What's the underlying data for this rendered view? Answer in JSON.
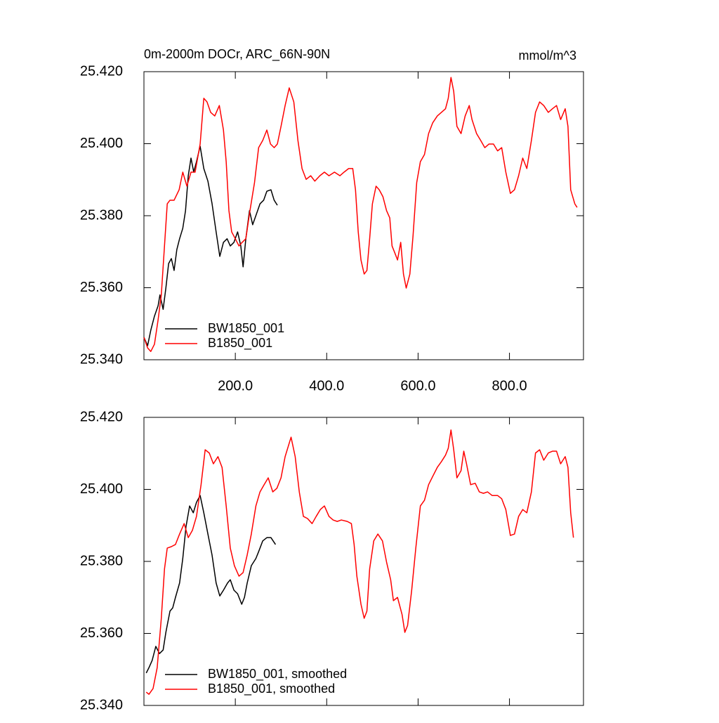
{
  "chart_data": [
    {
      "type": "line",
      "title": "0m-2000m DOCr, ARC_66N-90N",
      "y_units": "mmol/m^3",
      "xlim": [
        0,
        962
      ],
      "ylim": [
        25.34,
        25.42
      ],
      "xticks": [
        {
          "value": 200,
          "label": "200.0"
        },
        {
          "value": 400,
          "label": "400.0"
        },
        {
          "value": 600,
          "label": "600.0"
        },
        {
          "value": 800,
          "label": "800.0"
        }
      ],
      "xtick_labels": true,
      "yticks": [
        {
          "value": 25.34,
          "label": "25.340"
        },
        {
          "value": 25.36,
          "label": "25.360"
        },
        {
          "value": 25.38,
          "label": "25.380"
        },
        {
          "value": 25.4,
          "label": "25.400"
        },
        {
          "value": 25.42,
          "label": "25.420"
        }
      ],
      "legend": "lower-left",
      "series": [
        {
          "name": "BW1850_001",
          "color": "#000000",
          "x": [
            0,
            8,
            15,
            23,
            31,
            35,
            42,
            48,
            54,
            60,
            66,
            72,
            78,
            85,
            91,
            97,
            103,
            109,
            115,
            123,
            131,
            140,
            149,
            158,
            166,
            174,
            182,
            189,
            197,
            205,
            212,
            217,
            223,
            231,
            238,
            246,
            254,
            262,
            269,
            278,
            285,
            292
          ],
          "values": [
            25.3462,
            25.3439,
            25.3482,
            25.3521,
            25.355,
            25.358,
            25.354,
            25.3599,
            25.3667,
            25.3681,
            25.3648,
            25.3706,
            25.3736,
            25.3765,
            25.3814,
            25.3911,
            25.396,
            25.3921,
            25.395,
            25.3993,
            25.3931,
            25.3896,
            25.3834,
            25.3755,
            25.3687,
            25.3726,
            25.3736,
            25.3716,
            25.3726,
            25.3755,
            25.3716,
            25.3658,
            25.3736,
            25.3814,
            25.3775,
            25.3804,
            25.3833,
            25.3843,
            25.3868,
            25.3872,
            25.3843,
            25.3829
          ]
        },
        {
          "name": "B1850_001",
          "color": "#ff0000",
          "x": [
            0,
            8,
            15,
            23,
            31,
            38,
            46,
            51,
            57,
            66,
            77,
            85,
            94,
            103,
            112,
            123,
            131,
            138,
            146,
            155,
            165,
            174,
            180,
            186,
            192,
            200,
            208,
            215,
            223,
            232,
            242,
            251,
            260,
            269,
            277,
            285,
            292,
            300,
            309,
            318,
            328,
            337,
            346,
            355,
            365,
            374,
            385,
            395,
            405,
            417,
            429,
            438,
            448,
            457,
            463,
            469,
            475,
            482,
            488,
            494,
            500,
            508,
            515,
            523,
            531,
            538,
            543,
            549,
            555,
            562,
            568,
            574,
            582,
            589,
            597,
            605,
            614,
            623,
            632,
            642,
            651,
            660,
            666,
            672,
            678,
            685,
            694,
            703,
            712,
            718,
            728,
            737,
            746,
            755,
            765,
            774,
            783,
            792,
            802,
            811,
            820,
            829,
            838,
            848,
            857,
            866,
            875,
            885,
            894,
            903,
            912,
            922,
            928,
            934,
            943,
            948
          ],
          "values": [
            25.3462,
            25.3433,
            25.3423,
            25.3443,
            25.3511,
            25.358,
            25.3736,
            25.3833,
            25.3843,
            25.3843,
            25.3872,
            25.3921,
            25.3882,
            25.3921,
            25.3921,
            25.3999,
            25.4126,
            25.4116,
            25.4087,
            25.4077,
            25.4106,
            25.4038,
            25.395,
            25.3814,
            25.3755,
            25.3736,
            25.3716,
            25.3726,
            25.3736,
            25.3814,
            25.3892,
            25.3989,
            25.4009,
            25.4038,
            25.3999,
            25.3989,
            25.3999,
            25.4048,
            25.4106,
            25.4155,
            25.4116,
            25.4009,
            25.3931,
            25.3901,
            25.3911,
            25.3896,
            25.3911,
            25.3921,
            25.3911,
            25.3921,
            25.3911,
            25.3921,
            25.3931,
            25.3931,
            25.3872,
            25.3755,
            25.3677,
            25.3638,
            25.3648,
            25.3736,
            25.3833,
            25.3882,
            25.3872,
            25.3853,
            25.3814,
            25.3794,
            25.3716,
            25.3697,
            25.3677,
            25.3726,
            25.3638,
            25.3599,
            25.3638,
            25.3745,
            25.3892,
            25.395,
            25.397,
            25.4028,
            25.4058,
            25.4077,
            25.4087,
            25.4097,
            25.4126,
            25.4184,
            25.4145,
            25.4048,
            25.4028,
            25.4077,
            25.4106,
            25.4067,
            25.4028,
            25.4009,
            25.3989,
            25.3999,
            25.3999,
            25.398,
            25.3989,
            25.3921,
            25.3862,
            25.3872,
            25.3911,
            25.396,
            25.3931,
            25.4009,
            25.4087,
            25.4116,
            25.4106,
            25.4087,
            25.4097,
            25.4106,
            25.4067,
            25.4097,
            25.4048,
            25.3872,
            25.3833,
            25.3823
          ]
        }
      ]
    },
    {
      "type": "line",
      "xlim": [
        0,
        962
      ],
      "ylim": [
        25.34,
        25.42
      ],
      "xticks": [
        200,
        400,
        600,
        800
      ],
      "xtick_labels": false,
      "yticks": [
        {
          "value": 25.34,
          "label": "25.340"
        },
        {
          "value": 25.36,
          "label": "25.360"
        },
        {
          "value": 25.38,
          "label": "25.380"
        },
        {
          "value": 25.4,
          "label": "25.400"
        },
        {
          "value": 25.42,
          "label": "25.420"
        }
      ],
      "legend": "lower-left",
      "series": [
        {
          "name": "BW1850_001, smoothed",
          "color": "#000000",
          "x": [
            5,
            11,
            18,
            26,
            34,
            42,
            48,
            57,
            63,
            69,
            78,
            85,
            92,
            100,
            108,
            115,
            123,
            131,
            140,
            149,
            158,
            166,
            174,
            183,
            189,
            197,
            205,
            214,
            220,
            226,
            235,
            245,
            251,
            260,
            269,
            278,
            288
          ],
          "values": [
            25.349,
            25.3505,
            25.3525,
            25.3564,
            25.3544,
            25.3554,
            25.3603,
            25.3662,
            25.3671,
            25.37,
            25.374,
            25.3808,
            25.3896,
            25.3954,
            25.3935,
            25.3964,
            25.3983,
            25.3935,
            25.3876,
            25.3818,
            25.374,
            25.3704,
            25.372,
            25.374,
            25.3749,
            25.372,
            25.371,
            25.3681,
            25.37,
            25.374,
            25.3788,
            25.3808,
            25.3827,
            25.3857,
            25.3866,
            25.3866,
            25.3847
          ]
        },
        {
          "name": "B1850_001, smoothed",
          "color": "#ff0000",
          "x": [
            5,
            11,
            20,
            29,
            38,
            45,
            51,
            60,
            69,
            78,
            88,
            97,
            106,
            115,
            125,
            134,
            143,
            152,
            162,
            171,
            180,
            189,
            198,
            208,
            217,
            226,
            235,
            245,
            254,
            263,
            272,
            282,
            291,
            300,
            309,
            322,
            331,
            340,
            349,
            358,
            368,
            377,
            386,
            395,
            405,
            414,
            423,
            432,
            445,
            454,
            460,
            466,
            475,
            482,
            488,
            494,
            503,
            512,
            522,
            531,
            540,
            546,
            555,
            565,
            571,
            577,
            586,
            595,
            605,
            614,
            623,
            632,
            642,
            651,
            660,
            666,
            672,
            678,
            685,
            694,
            700,
            706,
            715,
            725,
            734,
            743,
            752,
            762,
            774,
            783,
            792,
            802,
            811,
            820,
            829,
            838,
            848,
            857,
            866,
            875,
            885,
            894,
            903,
            912,
            922,
            928,
            934,
            940
          ],
          "values": [
            25.3437,
            25.3431,
            25.3447,
            25.3505,
            25.3642,
            25.3779,
            25.3837,
            25.3841,
            25.3847,
            25.3876,
            25.3905,
            25.3866,
            25.3886,
            25.3925,
            25.4013,
            25.411,
            25.4101,
            25.4071,
            25.4091,
            25.4061,
            25.3954,
            25.3837,
            25.3788,
            25.3759,
            25.3769,
            25.3818,
            25.3876,
            25.3954,
            25.3993,
            25.4013,
            25.4032,
            25.3993,
            25.4003,
            25.4032,
            25.4091,
            25.4145,
            25.4091,
            25.3993,
            25.3925,
            25.3919,
            25.3905,
            25.3925,
            25.3944,
            25.3954,
            25.3925,
            25.3915,
            25.3911,
            25.3915,
            25.3911,
            25.3905,
            25.3847,
            25.3759,
            25.3681,
            25.3642,
            25.3662,
            25.3779,
            25.3857,
            25.3876,
            25.3857,
            25.3798,
            25.3749,
            25.3691,
            25.37,
            25.3652,
            25.3603,
            25.3622,
            25.372,
            25.3837,
            25.3954,
            25.397,
            25.4013,
            25.4036,
            25.4061,
            25.4077,
            25.4095,
            25.4114,
            25.4165,
            25.411,
            25.4032,
            25.4052,
            25.4106,
            25.4071,
            25.4013,
            25.4017,
            25.3993,
            25.3989,
            25.3993,
            25.3983,
            25.3983,
            25.3974,
            25.3944,
            25.3872,
            25.3876,
            25.3925,
            25.3944,
            25.3935,
            25.3993,
            25.4101,
            25.411,
            25.4081,
            25.4101,
            25.4106,
            25.4106,
            25.4071,
            25.4091,
            25.4061,
            25.3935,
            25.3866
          ]
        }
      ]
    }
  ]
}
